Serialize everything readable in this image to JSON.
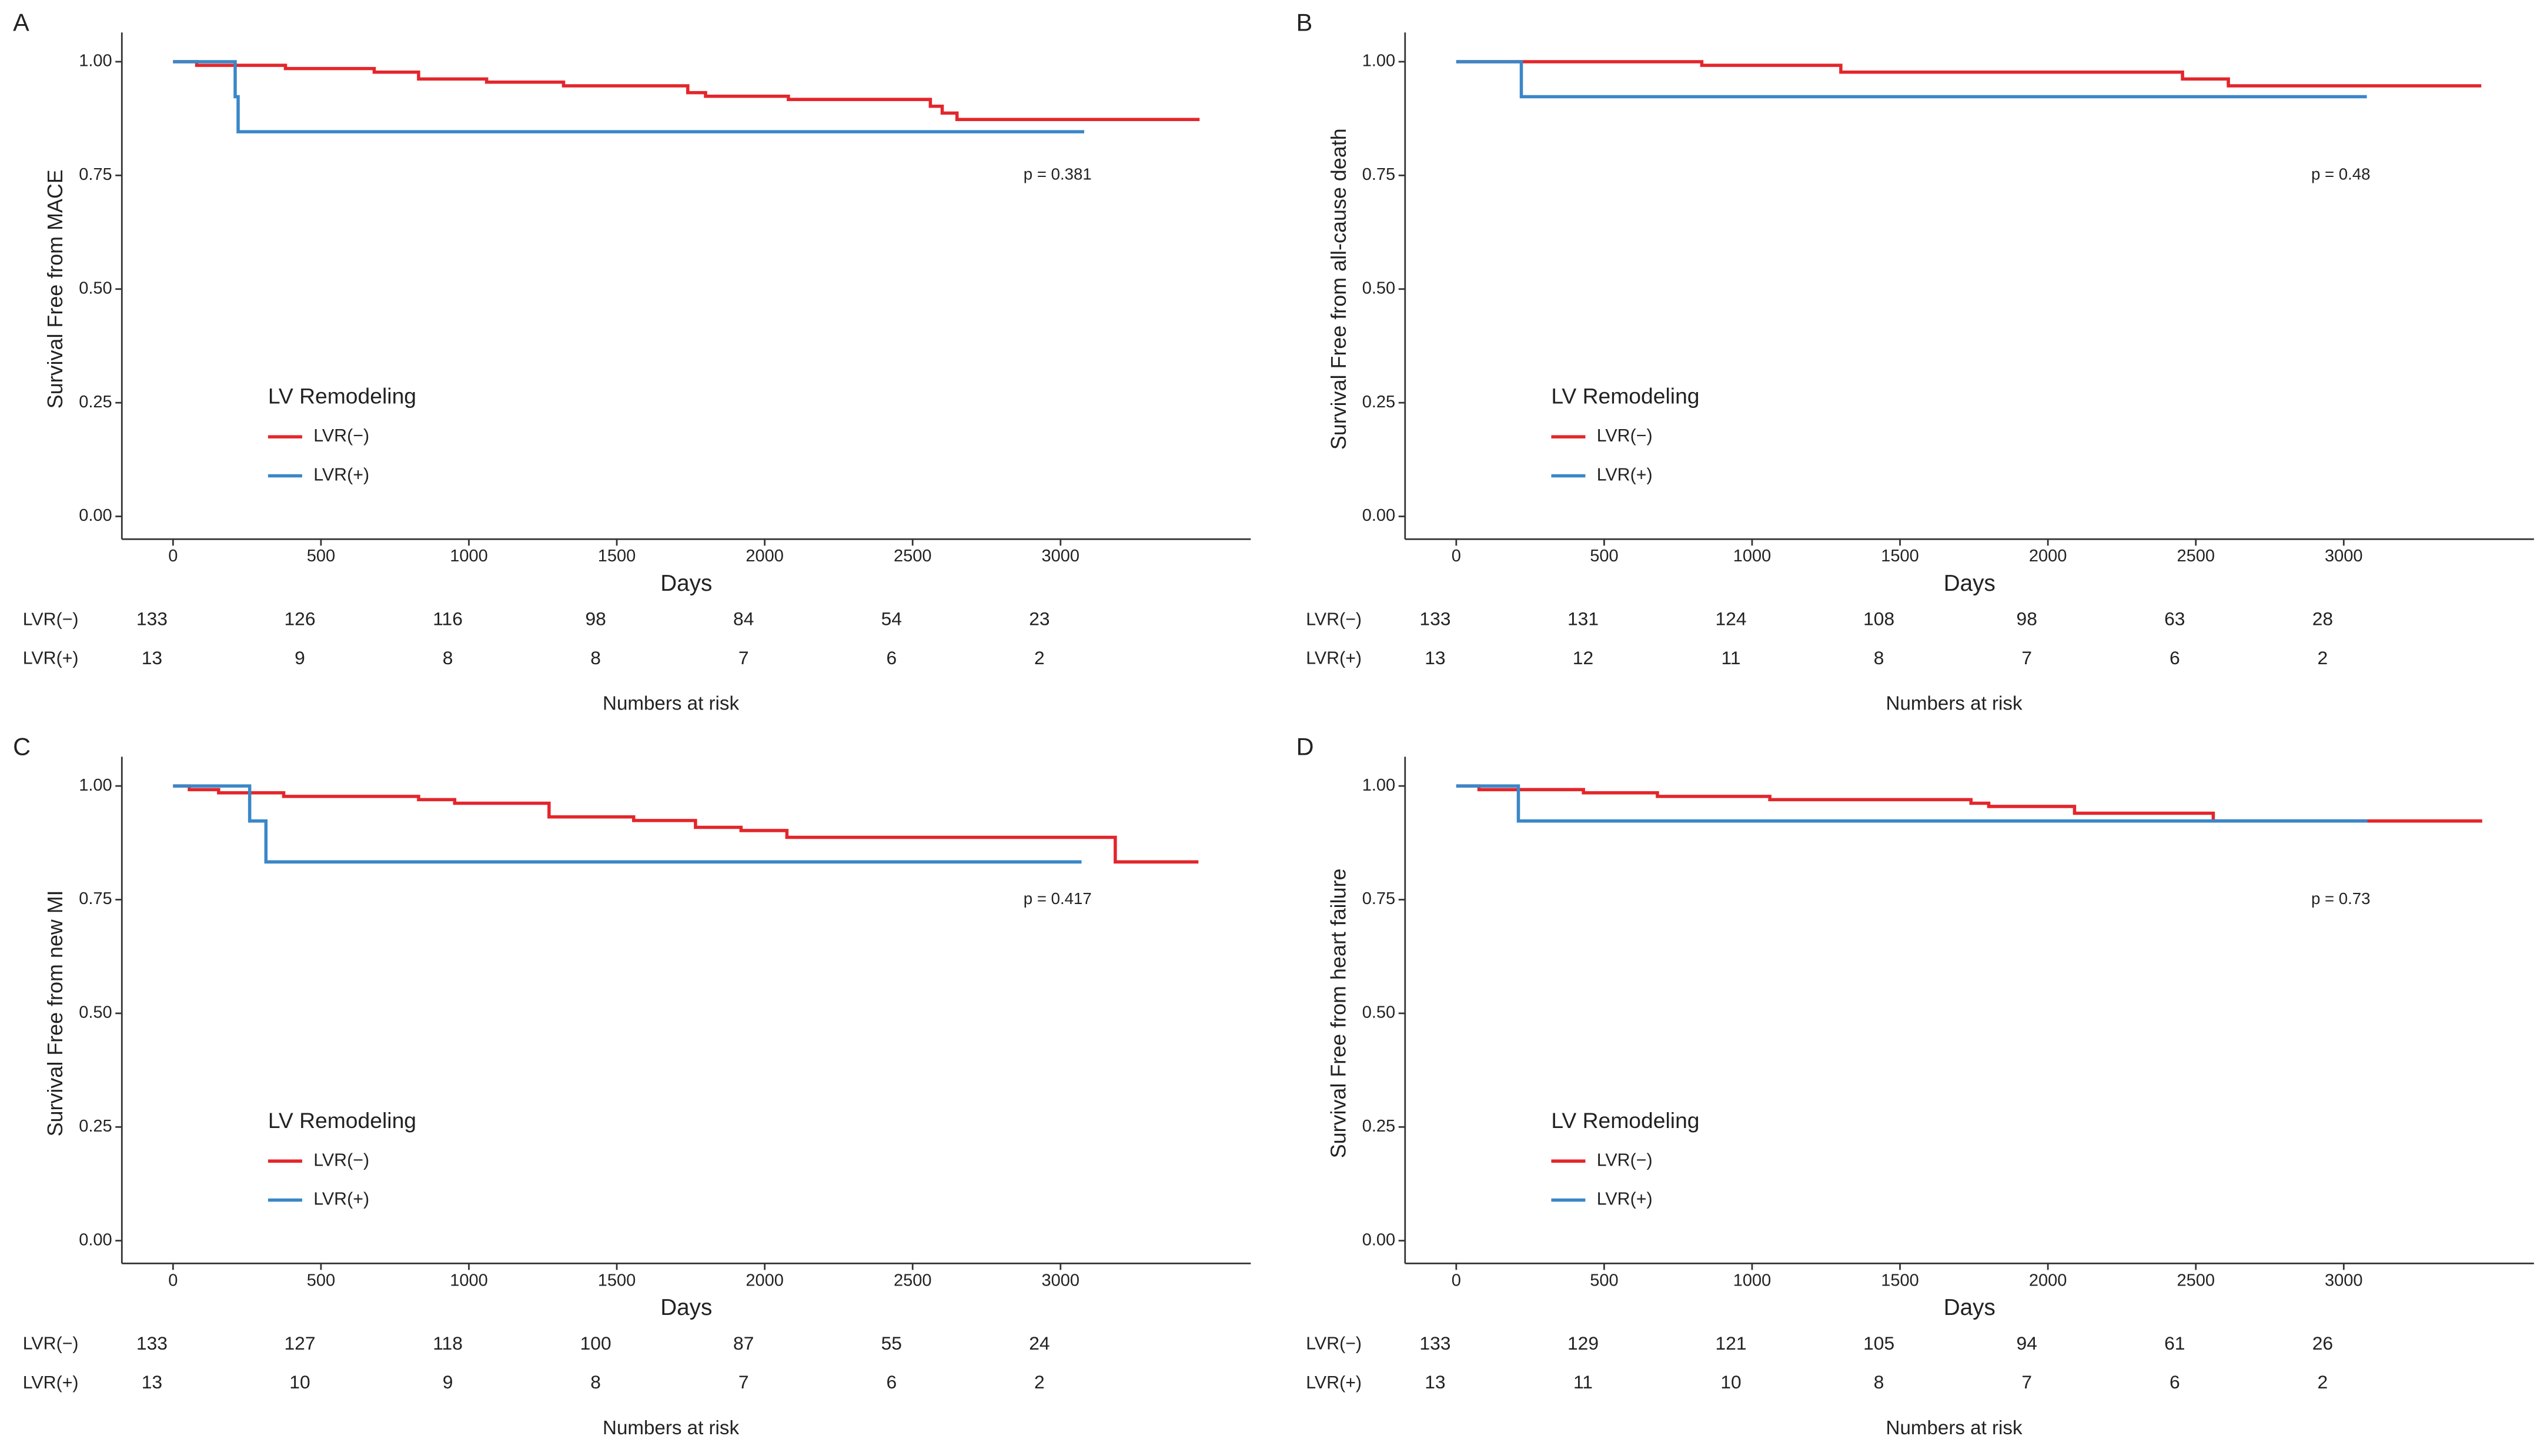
{
  "chart_data": [
    {
      "type": "step",
      "panel_label": "A",
      "y_label": "Survival Free from MACE",
      "x_label": "Days",
      "annotation": "p = 0.381",
      "legend_title": "LV Remodeling",
      "series": [
        {
          "name": "LVR(−)",
          "color": "#e3262b",
          "x": [
            0,
            80,
            380,
            680,
            830,
            1060,
            1320,
            1740,
            1800,
            2080,
            2560,
            2600,
            2650,
            3470
          ],
          "values": [
            1.0,
            0.992,
            0.985,
            0.977,
            0.962,
            0.955,
            0.947,
            0.932,
            0.924,
            0.917,
            0.902,
            0.887,
            0.873,
            0.873
          ]
        },
        {
          "name": "LVR(+)",
          "color": "#3a87c8",
          "x": [
            0,
            210,
            220,
            3080
          ],
          "values": [
            1.0,
            0.923,
            0.846,
            0.846
          ]
        }
      ],
      "xlim": [
        -173,
        3643
      ],
      "xticks": [
        0,
        500,
        1000,
        1500,
        2000,
        2500,
        3000
      ],
      "ylim": [
        -0.05,
        1.05
      ],
      "yticks": [
        {
          "value": 0,
          "label": "0.00"
        },
        {
          "value": 0.25,
          "label": "0.25"
        },
        {
          "value": 0.5,
          "label": "0.50"
        },
        {
          "value": 0.75,
          "label": "0.75"
        },
        {
          "value": 1,
          "label": "1.00"
        }
      ],
      "risk_table": {
        "title": "Numbers at risk",
        "rows": [
          {
            "name": "LVR(−)",
            "counts": [
              133,
              126,
              116,
              98,
              84,
              54,
              23
            ]
          },
          {
            "name": "LVR(+)",
            "counts": [
              13,
              9,
              8,
              8,
              7,
              6,
              2
            ]
          }
        ]
      }
    },
    {
      "type": "step",
      "panel_label": "B",
      "y_label": "Survival Free from all-cause death",
      "x_label": "Days",
      "annotation": "p = 0.48",
      "legend_title": "LV Remodeling",
      "series": [
        {
          "name": "LVR(−)",
          "color": "#e3262b",
          "x": [
            0,
            830,
            1300,
            2455,
            2610,
            3465
          ],
          "values": [
            1.0,
            0.992,
            0.977,
            0.962,
            0.947,
            0.947
          ]
        },
        {
          "name": "LVR(+)",
          "color": "#3a87c8",
          "x": [
            0,
            220,
            3078
          ],
          "values": [
            1.0,
            0.923,
            0.923
          ]
        }
      ],
      "xlim": [
        -173,
        3643
      ],
      "xticks": [
        0,
        500,
        1000,
        1500,
        2000,
        2500,
        3000
      ],
      "ylim": [
        -0.05,
        1.05
      ],
      "yticks": [
        {
          "value": 0,
          "label": "0.00"
        },
        {
          "value": 0.25,
          "label": "0.25"
        },
        {
          "value": 0.5,
          "label": "0.50"
        },
        {
          "value": 0.75,
          "label": "0.75"
        },
        {
          "value": 1,
          "label": "1.00"
        }
      ],
      "risk_table": {
        "title": "Numbers at risk",
        "rows": [
          {
            "name": "LVR(−)",
            "counts": [
              133,
              131,
              124,
              108,
              98,
              63,
              28
            ]
          },
          {
            "name": "LVR(+)",
            "counts": [
              13,
              12,
              11,
              8,
              7,
              6,
              2
            ]
          }
        ]
      }
    },
    {
      "type": "step",
      "panel_label": "C",
      "y_label": "Survival Free from new MI",
      "x_label": "Days",
      "annotation": "p = 0.417",
      "legend_title": "LV Remodeling",
      "series": [
        {
          "name": "LVR(−)",
          "color": "#e3262b",
          "x": [
            0,
            55,
            154,
            374,
            830,
            952,
            1271,
            1557,
            1766,
            1920,
            2075,
            3185,
            3466
          ],
          "values": [
            1.0,
            0.992,
            0.985,
            0.977,
            0.97,
            0.962,
            0.932,
            0.924,
            0.909,
            0.902,
            0.887,
            0.833,
            0.833
          ]
        },
        {
          "name": "LVR(+)",
          "color": "#3a87c8",
          "x": [
            0,
            259,
            314,
            3071
          ],
          "values": [
            1.0,
            0.923,
            0.833,
            0.833
          ]
        }
      ],
      "xlim": [
        -173,
        3643
      ],
      "xticks": [
        0,
        500,
        1000,
        1500,
        2000,
        2500,
        3000
      ],
      "ylim": [
        -0.05,
        1.05
      ],
      "yticks": [
        {
          "value": 0,
          "label": "0.00"
        },
        {
          "value": 0.25,
          "label": "0.25"
        },
        {
          "value": 0.5,
          "label": "0.50"
        },
        {
          "value": 0.75,
          "label": "0.75"
        },
        {
          "value": 1,
          "label": "1.00"
        }
      ],
      "risk_table": {
        "title": "Numbers at risk",
        "rows": [
          {
            "name": "LVR(−)",
            "counts": [
              133,
              127,
              118,
              100,
              87,
              55,
              24
            ]
          },
          {
            "name": "LVR(+)",
            "counts": [
              13,
              10,
              9,
              8,
              7,
              6,
              2
            ]
          }
        ]
      }
    },
    {
      "type": "step",
      "panel_label": "D",
      "y_label": "Survival Free from heart failure",
      "x_label": "Days",
      "annotation": "p = 0.73",
      "legend_title": "LV Remodeling",
      "series": [
        {
          "name": "LVR(−)",
          "color": "#e3262b",
          "x": [
            0,
            77,
            430,
            680,
            1060,
            1740,
            1800,
            2090,
            2559,
            3468
          ],
          "values": [
            1.0,
            0.992,
            0.985,
            0.977,
            0.97,
            0.962,
            0.955,
            0.94,
            0.923,
            0.923
          ]
        },
        {
          "name": "LVR(+)",
          "color": "#3a87c8",
          "x": [
            0,
            210,
            3080
          ],
          "values": [
            1.0,
            0.923,
            0.923
          ]
        }
      ],
      "xlim": [
        -173,
        3643
      ],
      "xticks": [
        0,
        500,
        1000,
        1500,
        2000,
        2500,
        3000
      ],
      "ylim": [
        -0.05,
        1.05
      ],
      "yticks": [
        {
          "value": 0,
          "label": "0.00"
        },
        {
          "value": 0.25,
          "label": "0.25"
        },
        {
          "value": 0.5,
          "label": "0.50"
        },
        {
          "value": 0.75,
          "label": "0.75"
        },
        {
          "value": 1,
          "label": "1.00"
        }
      ],
      "risk_table": {
        "title": "Numbers at risk",
        "rows": [
          {
            "name": "LVR(−)",
            "counts": [
              133,
              129,
              121,
              105,
              94,
              61,
              26
            ]
          },
          {
            "name": "LVR(+)",
            "counts": [
              13,
              11,
              10,
              8,
              7,
              6,
              2
            ]
          }
        ]
      }
    }
  ]
}
